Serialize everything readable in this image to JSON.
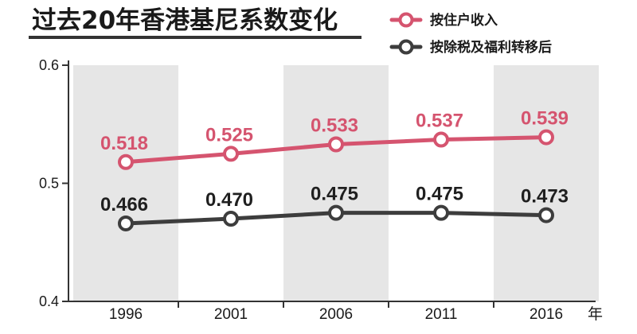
{
  "colors": {
    "pink": "#d5546f",
    "dark": "#3d3d3d",
    "band": "#e6e6e6",
    "axis": "#333333",
    "title_underline": "#333333"
  },
  "legend": [
    {
      "label": "按住户收入",
      "color": "#d5546f"
    },
    {
      "label": "按除税及福利转移后",
      "color": "#3d3d3d"
    }
  ],
  "chart_data": {
    "type": "line",
    "title": "过去20年香港基尼系数变化",
    "xlabel": "年",
    "ylabel": "",
    "x": [
      "1996",
      "2001",
      "2006",
      "2011",
      "2016"
    ],
    "ylim": [
      0.4,
      0.6
    ],
    "yticks": [
      "0.4",
      "0.5",
      "0.6"
    ],
    "series": [
      {
        "name": "按住户收入",
        "color": "#d5546f",
        "values": [
          0.518,
          0.525,
          0.533,
          0.537,
          0.539
        ],
        "labels": [
          "0.518",
          "0.525",
          "0.533",
          "0.537",
          "0.539"
        ]
      },
      {
        "name": "按除税及福利转移后",
        "color": "#3d3d3d",
        "values": [
          0.466,
          0.47,
          0.475,
          0.475,
          0.473
        ],
        "labels": [
          "0.466",
          "0.470",
          "0.475",
          "0.475",
          "0.473"
        ]
      }
    ],
    "grid": false,
    "alternating_bands": true,
    "legend_position": "top-right"
  }
}
